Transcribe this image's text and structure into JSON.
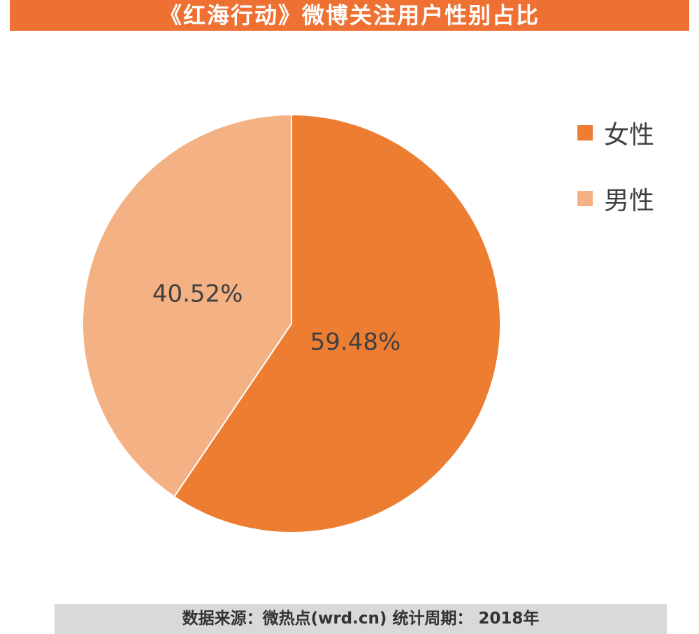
{
  "chart_data": {
    "type": "pie",
    "title": "《红海行动》微博关注用户性别占比",
    "categories": [
      "女性",
      "男性"
    ],
    "values": [
      59.48,
      40.52
    ],
    "labels": [
      "59.48%",
      "40.52%"
    ],
    "colors": [
      "#ed7d31",
      "#f4b183"
    ],
    "legend_position": "right"
  },
  "footer": {
    "source": "数据来源：微热点(wrd.cn)  统计周期： 2018年"
  }
}
